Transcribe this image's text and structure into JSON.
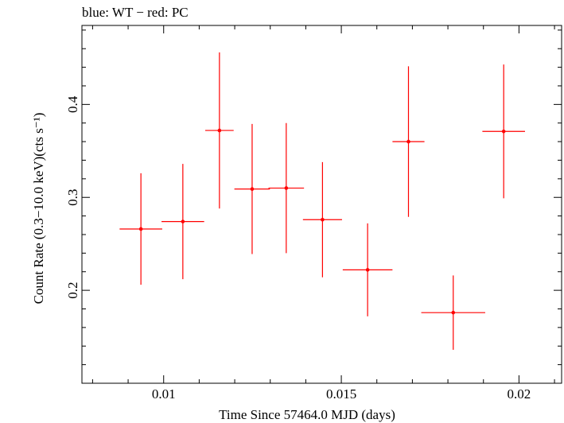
{
  "chart_data": {
    "type": "scatter",
    "title": "blue: WT − red: PC",
    "xlabel": "Time Since 57464.0 MJD (days)",
    "ylabel": "Count Rate (0.3−10.0 keV)(cts s⁻¹)",
    "xlim": [
      0.0077,
      0.0212
    ],
    "ylim": [
      0.1,
      0.485
    ],
    "x_ticks": [
      0.01,
      0.015,
      0.02
    ],
    "x_tick_labels": [
      "0.01",
      "0.015",
      "0.02"
    ],
    "y_ticks": [
      0.2,
      0.3,
      0.4
    ],
    "y_tick_labels": [
      "0.2",
      "0.3",
      "0.4"
    ],
    "grid": false,
    "legend": "none",
    "series": [
      {
        "name": "PC",
        "color": "#ff0000",
        "points": [
          {
            "x": 0.00936,
            "xerr": 0.0006,
            "y": 0.266,
            "yerr_low": 0.06,
            "yerr_high": 0.06
          },
          {
            "x": 0.01054,
            "xerr": 0.0006,
            "y": 0.274,
            "yerr_low": 0.062,
            "yerr_high": 0.062
          },
          {
            "x": 0.01157,
            "xerr": 0.0004,
            "y": 0.372,
            "yerr_low": 0.084,
            "yerr_high": 0.084
          },
          {
            "x": 0.01249,
            "xerr": 0.0005,
            "y": 0.309,
            "yerr_low": 0.07,
            "yerr_high": 0.07
          },
          {
            "x": 0.01345,
            "xerr": 0.0005,
            "y": 0.31,
            "yerr_low": 0.07,
            "yerr_high": 0.07
          },
          {
            "x": 0.01447,
            "xerr": 0.00055,
            "y": 0.276,
            "yerr_low": 0.062,
            "yerr_high": 0.062
          },
          {
            "x": 0.01574,
            "xerr": 0.0007,
            "y": 0.222,
            "yerr_low": 0.05,
            "yerr_high": 0.05
          },
          {
            "x": 0.01689,
            "xerr": 0.00045,
            "y": 0.36,
            "yerr_low": 0.081,
            "yerr_high": 0.081
          },
          {
            "x": 0.01815,
            "xerr": 0.0009,
            "y": 0.176,
            "yerr_low": 0.04,
            "yerr_high": 0.04
          },
          {
            "x": 0.01957,
            "xerr": 0.0006,
            "y": 0.371,
            "yerr_low": 0.072,
            "yerr_high": 0.072
          }
        ]
      }
    ]
  }
}
